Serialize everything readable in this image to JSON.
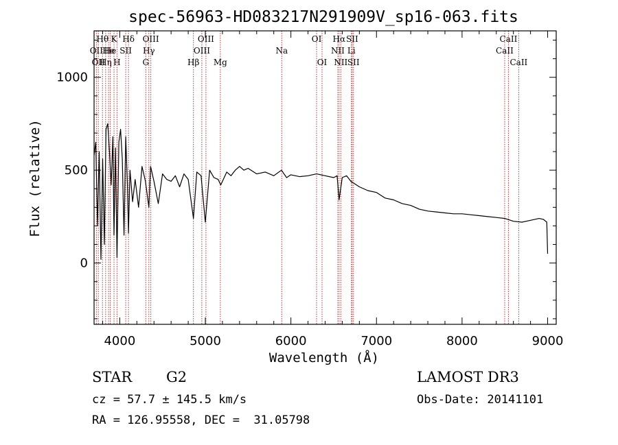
{
  "chart_data": {
    "type": "line",
    "title": "spec-56963-HD083217N291909V_sp16-063.fits",
    "xlabel": "Wavelength (Å)",
    "ylabel": "Flux (relative)",
    "xlim": [
      3700,
      9100
    ],
    "ylim": [
      -330,
      1250
    ],
    "xticks": [
      4000,
      5000,
      6000,
      7000,
      8000,
      9000
    ],
    "yticks": [
      0,
      500,
      1000
    ],
    "series": [
      {
        "name": "spectrum",
        "color": "#000000",
        "x": [
          3700,
          3720,
          3740,
          3760,
          3780,
          3800,
          3820,
          3840,
          3860,
          3880,
          3900,
          3920,
          3933,
          3950,
          3968,
          3990,
          4010,
          4030,
          4050,
          4070,
          4090,
          4102,
          4120,
          4150,
          4180,
          4220,
          4260,
          4300,
          4340,
          4360,
          4400,
          4450,
          4500,
          4550,
          4600,
          4650,
          4700,
          4750,
          4800,
          4861,
          4900,
          4950,
          5000,
          5050,
          5100,
          5150,
          5180,
          5250,
          5300,
          5350,
          5400,
          5450,
          5500,
          5600,
          5700,
          5800,
          5890,
          5950,
          6000,
          6100,
          6200,
          6300,
          6400,
          6500,
          6540,
          6563,
          6600,
          6650,
          6700,
          6800,
          6900,
          7000,
          7100,
          7200,
          7300,
          7400,
          7500,
          7600,
          7700,
          7800,
          7900,
          8000,
          8100,
          8200,
          8300,
          8400,
          8500,
          8600,
          8700,
          8800,
          8900,
          8950,
          8990,
          9000
        ],
        "y": [
          580,
          650,
          200,
          600,
          20,
          560,
          100,
          720,
          750,
          600,
          420,
          680,
          150,
          620,
          30,
          650,
          720,
          560,
          150,
          680,
          420,
          160,
          500,
          330,
          450,
          300,
          520,
          440,
          300,
          520,
          440,
          320,
          480,
          450,
          440,
          470,
          410,
          480,
          450,
          240,
          490,
          470,
          220,
          500,
          460,
          450,
          420,
          490,
          470,
          500,
          520,
          500,
          510,
          480,
          490,
          470,
          500,
          460,
          475,
          465,
          470,
          480,
          470,
          460,
          470,
          340,
          460,
          470,
          440,
          410,
          390,
          380,
          350,
          340,
          320,
          310,
          290,
          280,
          275,
          270,
          265,
          265,
          260,
          255,
          250,
          245,
          240,
          225,
          220,
          230,
          240,
          235,
          220,
          50
        ]
      }
    ],
    "line_marks": [
      {
        "wl": 3727,
        "label": "OII",
        "row": 2
      },
      {
        "wl": 3750,
        "label": "OII",
        "row": 3
      },
      {
        "wl": 3798,
        "label": "Hθ",
        "row": 1
      },
      {
        "wl": 3835,
        "label": "Hη",
        "row": 3
      },
      {
        "wl": 3869,
        "label": "He",
        "row": 2
      },
      {
        "wl": 3889,
        "label": "He",
        "row": 2
      },
      {
        "wl": 3933,
        "label": "K",
        "row": 1
      },
      {
        "wl": 3968,
        "label": "H",
        "row": 3
      },
      {
        "wl": 4070,
        "label": "SII",
        "row": 2
      },
      {
        "wl": 4102,
        "label": "Hδ",
        "row": 1
      },
      {
        "wl": 4304,
        "label": "G",
        "row": 3
      },
      {
        "wl": 4340,
        "label": "Hγ",
        "row": 2
      },
      {
        "wl": 4363,
        "label": "OIII",
        "row": 1
      },
      {
        "wl": 4861,
        "label": "Hβ",
        "row": 3
      },
      {
        "wl": 4959,
        "label": "OIII",
        "row": 2
      },
      {
        "wl": 5007,
        "label": "OIII",
        "row": 1
      },
      {
        "wl": 5175,
        "label": "Mg",
        "row": 3
      },
      {
        "wl": 5893,
        "label": "Na",
        "row": 2
      },
      {
        "wl": 6300,
        "label": "OI",
        "row": 1
      },
      {
        "wl": 6364,
        "label": "OI",
        "row": 3
      },
      {
        "wl": 6548,
        "label": "NII",
        "row": 2
      },
      {
        "wl": 6563,
        "label": "Hα",
        "row": 1
      },
      {
        "wl": 6583,
        "label": "NII",
        "row": 3
      },
      {
        "wl": 6707,
        "label": "Li",
        "row": 2
      },
      {
        "wl": 6716,
        "label": "SII",
        "row": 1
      },
      {
        "wl": 6731,
        "label": "SII",
        "row": 3
      },
      {
        "wl": 8498,
        "label": "CaII",
        "row": 2
      },
      {
        "wl": 8542,
        "label": "CaII",
        "row": 1
      },
      {
        "wl": 8662,
        "label": "CaII",
        "row": 3
      }
    ]
  },
  "footer": {
    "object_class": "STAR",
    "subclass": "G2",
    "survey": "LAMOST DR3",
    "redshift": "cz = 57.7 ± 145.5 km/s",
    "obs_date": "Obs-Date: 20141101",
    "coords": "RA = 126.95558, DEC =  31.05798"
  },
  "colors": {
    "line_marker": "#b03030",
    "spectrum": "#000000"
  }
}
